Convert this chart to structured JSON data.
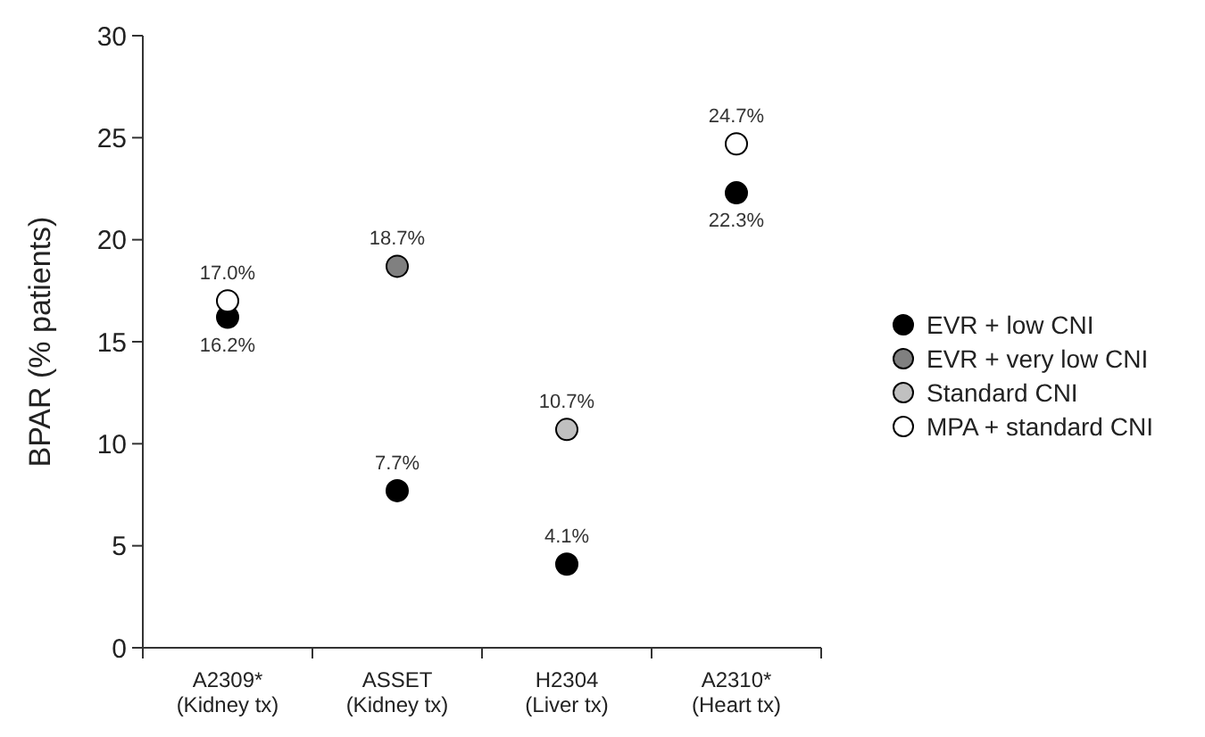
{
  "chart_data": {
    "type": "scatter",
    "ylabel": "BPAR (% patients)",
    "categories": [
      "A2309*\n(Kidney tx)",
      "ASSET\n(Kidney tx)",
      "H2304\n(Liver tx)",
      "A2310*\n(Heart tx)"
    ],
    "ylim": [
      0,
      30
    ],
    "yticks": [
      0,
      5,
      10,
      15,
      20,
      25,
      30
    ],
    "grid": false,
    "legend": "right",
    "marker": "circle",
    "series": [
      {
        "name": "EVR + low CNI",
        "color": "#000000",
        "values": [
          16.2,
          7.7,
          4.1,
          22.3
        ],
        "value_labels": [
          "16.2%",
          "7.7%",
          "4.1%",
          "22.3%"
        ]
      },
      {
        "name": "EVR + very low CNI",
        "color": "#808080",
        "values": [
          null,
          18.7,
          null,
          null
        ],
        "value_labels": [
          null,
          "18.7%",
          null,
          null
        ]
      },
      {
        "name": "Standard CNI",
        "color": "#c0c0c0",
        "values": [
          null,
          null,
          10.7,
          null
        ],
        "value_labels": [
          null,
          null,
          "10.7%",
          null
        ]
      },
      {
        "name": "MPA + standard CNI",
        "color": "#ffffff",
        "values": [
          17.0,
          null,
          null,
          24.7
        ],
        "value_labels": [
          "17.0%",
          null,
          null,
          "24.7%"
        ]
      }
    ]
  }
}
